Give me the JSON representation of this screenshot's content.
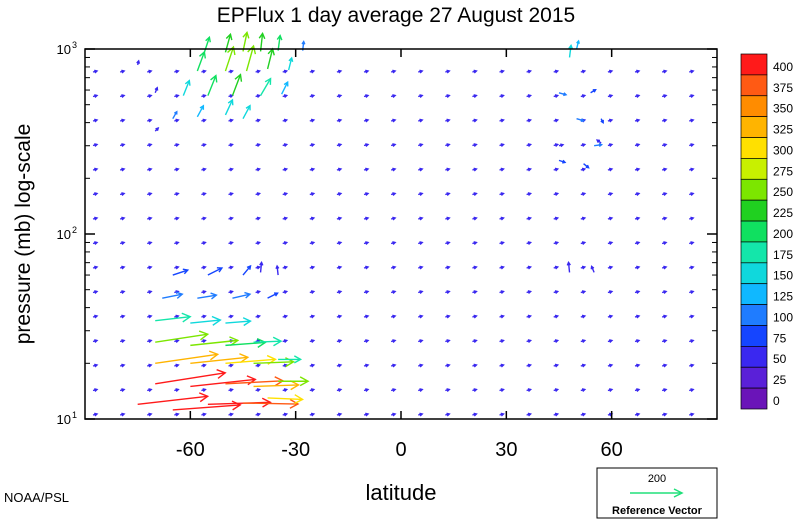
{
  "credit": "NOAA/PSL",
  "reference": {
    "value": "200",
    "label": "Reference Vector",
    "color": "#20e07a"
  },
  "chart_data": {
    "type": "vector",
    "title": "EPFlux  1 day average  27 August    2015",
    "xlabel": "latitude",
    "ylabel": "pressure (mb)  log-scale",
    "xlim": [
      -90,
      90
    ],
    "ylim": [
      1000,
      10
    ],
    "yscale": "log",
    "x_ticks": [
      -60,
      -30,
      0,
      30,
      60
    ],
    "x_tick_labels": [
      "-60",
      "-30",
      "0",
      "30",
      "60"
    ],
    "y_ticks": [
      10,
      100,
      1000
    ],
    "y_tick_labels": [
      {
        "base": "10",
        "exp": "1"
      },
      {
        "base": "10",
        "exp": "2"
      },
      {
        "base": "10",
        "exp": "3"
      }
    ],
    "colorbar": {
      "labels": [
        "400",
        "375",
        "350",
        "325",
        "300",
        "275",
        "250",
        "225",
        "200",
        "175",
        "150",
        "125",
        "100",
        "75",
        "50",
        "25",
        "0"
      ],
      "colors": [
        "#ff1a1a",
        "#ff5a14",
        "#ff8c00",
        "#ffb400",
        "#ffe000",
        "#c8f000",
        "#7ce600",
        "#20d020",
        "#10e060",
        "#14e6aa",
        "#10d8dc",
        "#10b8ff",
        "#1f7cff",
        "#1545ff",
        "#3a28f0",
        "#5a20d8",
        "#6a14b8"
      ]
    },
    "vectors": [
      {
        "x": -75,
        "p": 12,
        "u": 140,
        "v": 16,
        "m": 405
      },
      {
        "x": -65,
        "p": 11.2,
        "u": 135,
        "v": 10,
        "m": 410
      },
      {
        "x": -55,
        "p": 12,
        "u": 125,
        "v": 4,
        "m": 405
      },
      {
        "x": -45,
        "p": 12.2,
        "u": 110,
        "v": -2,
        "m": 390
      },
      {
        "x": -38,
        "p": 13,
        "u": 70,
        "v": -3,
        "m": 300
      },
      {
        "x": -70,
        "p": 15.5,
        "u": 140,
        "v": 22,
        "m": 405
      },
      {
        "x": -60,
        "p": 15,
        "u": 130,
        "v": 14,
        "m": 400
      },
      {
        "x": -50,
        "p": 15.5,
        "u": 115,
        "v": 6,
        "m": 385
      },
      {
        "x": -42,
        "p": 15,
        "u": 90,
        "v": 3,
        "m": 340
      },
      {
        "x": -35,
        "p": 16,
        "u": 60,
        "v": 0,
        "m": 260
      },
      {
        "x": -70,
        "p": 20,
        "u": 125,
        "v": 18,
        "m": 340
      },
      {
        "x": -60,
        "p": 20,
        "u": 115,
        "v": 12,
        "m": 330
      },
      {
        "x": -50,
        "p": 20,
        "u": 100,
        "v": 8,
        "m": 300
      },
      {
        "x": -42,
        "p": 20,
        "u": 80,
        "v": 3,
        "m": 250
      },
      {
        "x": -35,
        "p": 21,
        "u": 45,
        "v": 0,
        "m": 180
      },
      {
        "x": -70,
        "p": 26,
        "u": 105,
        "v": 16,
        "m": 270
      },
      {
        "x": -60,
        "p": 25,
        "u": 95,
        "v": 10,
        "m": 250
      },
      {
        "x": -50,
        "p": 25,
        "u": 80,
        "v": 6,
        "m": 220
      },
      {
        "x": -42,
        "p": 26,
        "u": 55,
        "v": 2,
        "m": 180
      },
      {
        "x": -70,
        "p": 34,
        "u": 70,
        "v": 8,
        "m": 180
      },
      {
        "x": -60,
        "p": 33,
        "u": 60,
        "v": 6,
        "m": 160
      },
      {
        "x": -50,
        "p": 33,
        "u": 50,
        "v": 4,
        "m": 150
      },
      {
        "x": -68,
        "p": 45,
        "u": 40,
        "v": 8,
        "m": 100
      },
      {
        "x": -58,
        "p": 45,
        "u": 38,
        "v": 6,
        "m": 100
      },
      {
        "x": -48,
        "p": 45,
        "u": 35,
        "v": 8,
        "m": 100
      },
      {
        "x": -38,
        "p": 45,
        "u": 20,
        "v": 10,
        "m": 80
      },
      {
        "x": -65,
        "p": 60,
        "u": 30,
        "v": 10,
        "m": 80
      },
      {
        "x": -55,
        "p": 60,
        "u": 28,
        "v": 14,
        "m": 80
      },
      {
        "x": -45,
        "p": 60,
        "u": 15,
        "v": 18,
        "m": 80
      },
      {
        "x": -40,
        "p": 62,
        "u": 2,
        "v": 20,
        "m": 60
      },
      {
        "x": -35,
        "p": 60,
        "u": -2,
        "v": 18,
        "m": 60
      },
      {
        "x": 48,
        "p": 62,
        "u": -2,
        "v": 20,
        "m": 60
      },
      {
        "x": 55,
        "p": 62,
        "u": -5,
        "v": 12,
        "m": 50
      },
      {
        "x": 45,
        "p": 250,
        "u": 12,
        "v": -4,
        "m": 80
      },
      {
        "x": 52,
        "p": 240,
        "u": 10,
        "v": -8,
        "m": 90
      },
      {
        "x": 55,
        "p": 300,
        "u": 15,
        "v": 2,
        "m": 100
      },
      {
        "x": 45,
        "p": 300,
        "u": 8,
        "v": 2,
        "m": 70
      },
      {
        "x": 57,
        "p": 310,
        "u": -8,
        "v": 6,
        "m": 70
      },
      {
        "x": 50,
        "p": 420,
        "u": 14,
        "v": -4,
        "m": 120
      },
      {
        "x": 57,
        "p": 420,
        "u": 4,
        "v": -8,
        "m": 90
      },
      {
        "x": 45,
        "p": 580,
        "u": 14,
        "v": -4,
        "m": 110
      },
      {
        "x": 54,
        "p": 580,
        "u": 10,
        "v": 6,
        "m": 90
      },
      {
        "x": 48,
        "p": 900,
        "u": 3,
        "v": 24,
        "m": 150
      },
      {
        "x": 50,
        "p": 1000,
        "u": 4,
        "v": 16,
        "m": 140
      },
      {
        "x": -70,
        "p": 360,
        "u": 6,
        "v": 6,
        "m": 70
      },
      {
        "x": -65,
        "p": 420,
        "u": 8,
        "v": 14,
        "m": 100
      },
      {
        "x": -58,
        "p": 430,
        "u": 12,
        "v": 22,
        "m": 140
      },
      {
        "x": -50,
        "p": 440,
        "u": 14,
        "v": 30,
        "m": 170
      },
      {
        "x": -45,
        "p": 420,
        "u": 14,
        "v": 26,
        "m": 160
      },
      {
        "x": -62,
        "p": 560,
        "u": 12,
        "v": 30,
        "m": 160
      },
      {
        "x": -55,
        "p": 560,
        "u": 16,
        "v": 40,
        "m": 210
      },
      {
        "x": -48,
        "p": 560,
        "u": 16,
        "v": 42,
        "m": 230
      },
      {
        "x": -40,
        "p": 560,
        "u": 20,
        "v": 34,
        "m": 190
      },
      {
        "x": -34,
        "p": 570,
        "u": 12,
        "v": 24,
        "m": 140
      },
      {
        "x": -58,
        "p": 760,
        "u": 14,
        "v": 38,
        "m": 220
      },
      {
        "x": -50,
        "p": 760,
        "u": 16,
        "v": 48,
        "m": 260
      },
      {
        "x": -44,
        "p": 760,
        "u": 14,
        "v": 50,
        "m": 270
      },
      {
        "x": -38,
        "p": 780,
        "u": 10,
        "v": 40,
        "m": 240
      },
      {
        "x": -32,
        "p": 770,
        "u": 6,
        "v": 24,
        "m": 150
      },
      {
        "x": -56,
        "p": 960,
        "u": 10,
        "v": 30,
        "m": 200
      },
      {
        "x": -50,
        "p": 960,
        "u": 10,
        "v": 36,
        "m": 230
      },
      {
        "x": -45,
        "p": 970,
        "u": 8,
        "v": 38,
        "m": 250
      },
      {
        "x": -40,
        "p": 970,
        "u": 4,
        "v": 36,
        "m": 240
      },
      {
        "x": -35,
        "p": 980,
        "u": 4,
        "v": 30,
        "m": 200
      },
      {
        "x": -28,
        "p": 980,
        "u": 2,
        "v": 18,
        "m": 120
      },
      {
        "x": -75,
        "p": 820,
        "u": 2,
        "v": 8,
        "m": 60
      },
      {
        "x": -70,
        "p": 580,
        "u": 4,
        "v": 10,
        "m": 70
      }
    ]
  }
}
